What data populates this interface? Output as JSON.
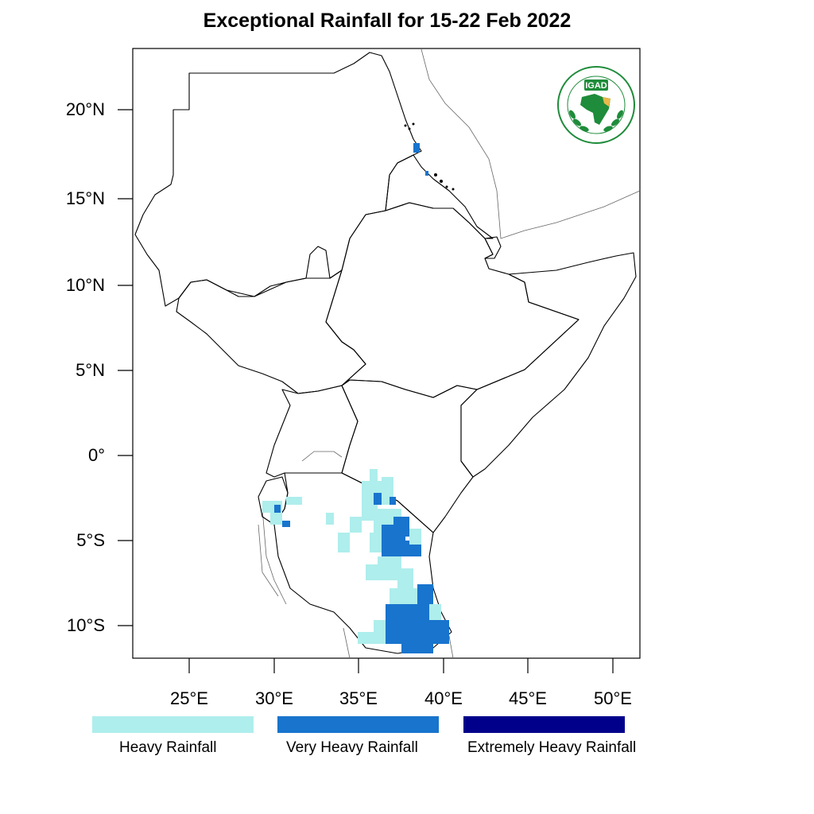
{
  "title": "Exceptional Rainfall for 15-22 Feb 2022",
  "logo": {
    "text": "IGAD",
    "ring_text": "INTERGOVERNMENTAL AUTHORITY ON DEVELOPMENT"
  },
  "axes": {
    "lat_labels": [
      "20°N",
      "15°N",
      "10°N",
      "5°N",
      "0°",
      "5°S",
      "10°S"
    ],
    "lon_labels": [
      "25°E",
      "30°E",
      "35°E",
      "40°E",
      "45°E",
      "50°E"
    ]
  },
  "legend": [
    {
      "label": "Heavy Rainfall",
      "color": "#aeeeec"
    },
    {
      "label": "Very Heavy Rainfall",
      "color": "#1874cd"
    },
    {
      "label": "Extremely Heavy Rainfall",
      "color": "#00008b"
    }
  ],
  "colors": {
    "heavy": "#aeeeec",
    "very_heavy": "#1874cd",
    "extreme": "#00008b",
    "border": "#000000",
    "igad_green": "#1e8c3a",
    "igad_yellow": "#e8b94a"
  }
}
